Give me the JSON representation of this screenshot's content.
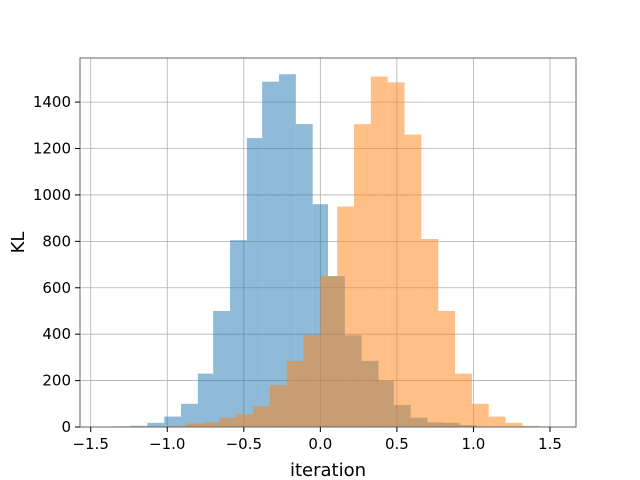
{
  "chart_data": {
    "type": "bar",
    "subtype": "overlapping-histogram",
    "xlabel": "iteration",
    "ylabel": "KL",
    "xlim": [
      -1.57,
      1.67
    ],
    "ylim": [
      0,
      1590
    ],
    "xticks": [
      -1.5,
      -1.0,
      -0.5,
      0.0,
      0.5,
      1.0,
      1.5
    ],
    "xtick_labels": [
      "−1.5",
      "−1.0",
      "−0.5",
      "0.0",
      "0.5",
      "1.0",
      "1.5"
    ],
    "yticks": [
      0,
      200,
      400,
      600,
      800,
      1000,
      1200,
      1400
    ],
    "ytick_labels": [
      "0",
      "200",
      "400",
      "600",
      "800",
      "1000",
      "1200",
      "1400"
    ],
    "grid": true,
    "legend": "none",
    "series": [
      {
        "color": "#1f77b4",
        "opacity": 0.5,
        "bins": [
          {
            "x0": -1.35,
            "x1": -1.24,
            "value": 3
          },
          {
            "x0": -1.24,
            "x1": -1.13,
            "value": 5
          },
          {
            "x0": -1.13,
            "x1": -1.02,
            "value": 18
          },
          {
            "x0": -1.02,
            "x1": -0.91,
            "value": 45
          },
          {
            "x0": -0.91,
            "x1": -0.8,
            "value": 100
          },
          {
            "x0": -0.8,
            "x1": -0.7,
            "value": 230
          },
          {
            "x0": -0.7,
            "x1": -0.59,
            "value": 500
          },
          {
            "x0": -0.59,
            "x1": -0.48,
            "value": 805
          },
          {
            "x0": -0.48,
            "x1": -0.38,
            "value": 1245
          },
          {
            "x0": -0.38,
            "x1": -0.27,
            "value": 1488
          },
          {
            "x0": -0.27,
            "x1": -0.16,
            "value": 1520
          },
          {
            "x0": -0.16,
            "x1": -0.05,
            "value": 1305
          },
          {
            "x0": -0.05,
            "x1": 0.05,
            "value": 960
          },
          {
            "x0": 0.05,
            "x1": 0.16,
            "value": 650
          },
          {
            "x0": 0.16,
            "x1": 0.27,
            "value": 395
          },
          {
            "x0": 0.27,
            "x1": 0.38,
            "value": 285
          },
          {
            "x0": 0.38,
            "x1": 0.48,
            "value": 200
          },
          {
            "x0": 0.48,
            "x1": 0.59,
            "value": 95
          },
          {
            "x0": 0.59,
            "x1": 0.7,
            "value": 40
          },
          {
            "x0": 0.7,
            "x1": 0.8,
            "value": 20
          },
          {
            "x0": 0.8,
            "x1": 0.91,
            "value": 18
          },
          {
            "x0": 0.91,
            "x1": 1.02,
            "value": 8
          }
        ]
      },
      {
        "color": "#ff7f0e",
        "opacity": 0.5,
        "bins": [
          {
            "x0": -1.1,
            "x1": -0.99,
            "value": 3
          },
          {
            "x0": -0.99,
            "x1": -0.88,
            "value": 5
          },
          {
            "x0": -0.88,
            "x1": -0.77,
            "value": 15
          },
          {
            "x0": -0.77,
            "x1": -0.66,
            "value": 20
          },
          {
            "x0": -0.66,
            "x1": -0.55,
            "value": 40
          },
          {
            "x0": -0.55,
            "x1": -0.44,
            "value": 55
          },
          {
            "x0": -0.44,
            "x1": -0.33,
            "value": 90
          },
          {
            "x0": -0.33,
            "x1": -0.22,
            "value": 180
          },
          {
            "x0": -0.22,
            "x1": -0.11,
            "value": 285
          },
          {
            "x0": -0.11,
            "x1": 0.0,
            "value": 395
          },
          {
            "x0": 0.0,
            "x1": 0.11,
            "value": 650
          },
          {
            "x0": 0.11,
            "x1": 0.22,
            "value": 950
          },
          {
            "x0": 0.22,
            "x1": 0.33,
            "value": 1305
          },
          {
            "x0": 0.33,
            "x1": 0.44,
            "value": 1510
          },
          {
            "x0": 0.44,
            "x1": 0.55,
            "value": 1485
          },
          {
            "x0": 0.55,
            "x1": 0.66,
            "value": 1260
          },
          {
            "x0": 0.66,
            "x1": 0.77,
            "value": 810
          },
          {
            "x0": 0.77,
            "x1": 0.88,
            "value": 500
          },
          {
            "x0": 0.88,
            "x1": 0.99,
            "value": 230
          },
          {
            "x0": 0.99,
            "x1": 1.1,
            "value": 100
          },
          {
            "x0": 1.1,
            "x1": 1.21,
            "value": 45
          },
          {
            "x0": 1.21,
            "x1": 1.32,
            "value": 18
          },
          {
            "x0": 1.32,
            "x1": 1.43,
            "value": 5
          }
        ]
      }
    ]
  }
}
